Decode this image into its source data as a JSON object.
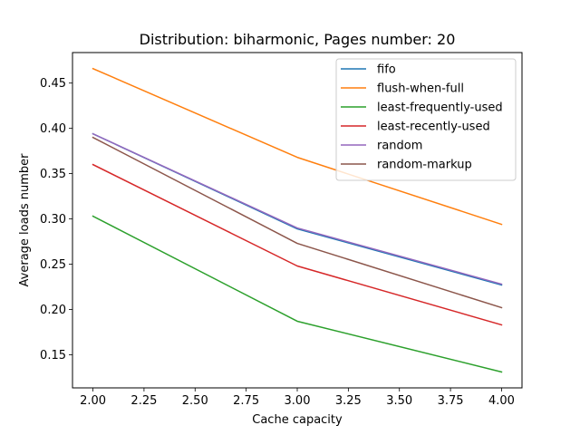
{
  "chart_data": {
    "type": "line",
    "title": "Distribution: biharmonic, Pages number: 20",
    "xlabel": "Cache capacity",
    "ylabel": "Average loads number",
    "x": [
      2.0,
      3.0,
      4.0
    ],
    "xlim": [
      1.9,
      4.1
    ],
    "ylim": [
      0.1134,
      0.4837
    ],
    "xticks": [
      2.0,
      2.25,
      2.5,
      2.75,
      3.0,
      3.25,
      3.5,
      3.75,
      4.0
    ],
    "xtick_labels": [
      "2.00",
      "2.25",
      "2.50",
      "2.75",
      "3.00",
      "3.25",
      "3.50",
      "3.75",
      "4.00"
    ],
    "yticks": [
      0.15,
      0.2,
      0.25,
      0.3,
      0.35,
      0.4,
      0.45
    ],
    "ytick_labels": [
      "0.15",
      "0.20",
      "0.25",
      "0.30",
      "0.35",
      "0.40",
      "0.45"
    ],
    "grid": false,
    "legend_position": "top-right",
    "series": [
      {
        "name": "fifo",
        "color": "#1f77b4",
        "values": [
          0.394,
          0.289,
          0.227
        ]
      },
      {
        "name": "flush-when-full",
        "color": "#ff7f0e",
        "values": [
          0.466,
          0.368,
          0.294
        ]
      },
      {
        "name": "least-frequently-used",
        "color": "#2ca02c",
        "values": [
          0.303,
          0.187,
          0.131
        ]
      },
      {
        "name": "least-recently-used",
        "color": "#d62728",
        "values": [
          0.36,
          0.248,
          0.183
        ]
      },
      {
        "name": "random",
        "color": "#9467bd",
        "values": [
          0.394,
          0.29,
          0.228
        ]
      },
      {
        "name": "random-markup",
        "color": "#8c564b",
        "values": [
          0.39,
          0.273,
          0.202
        ]
      }
    ]
  }
}
